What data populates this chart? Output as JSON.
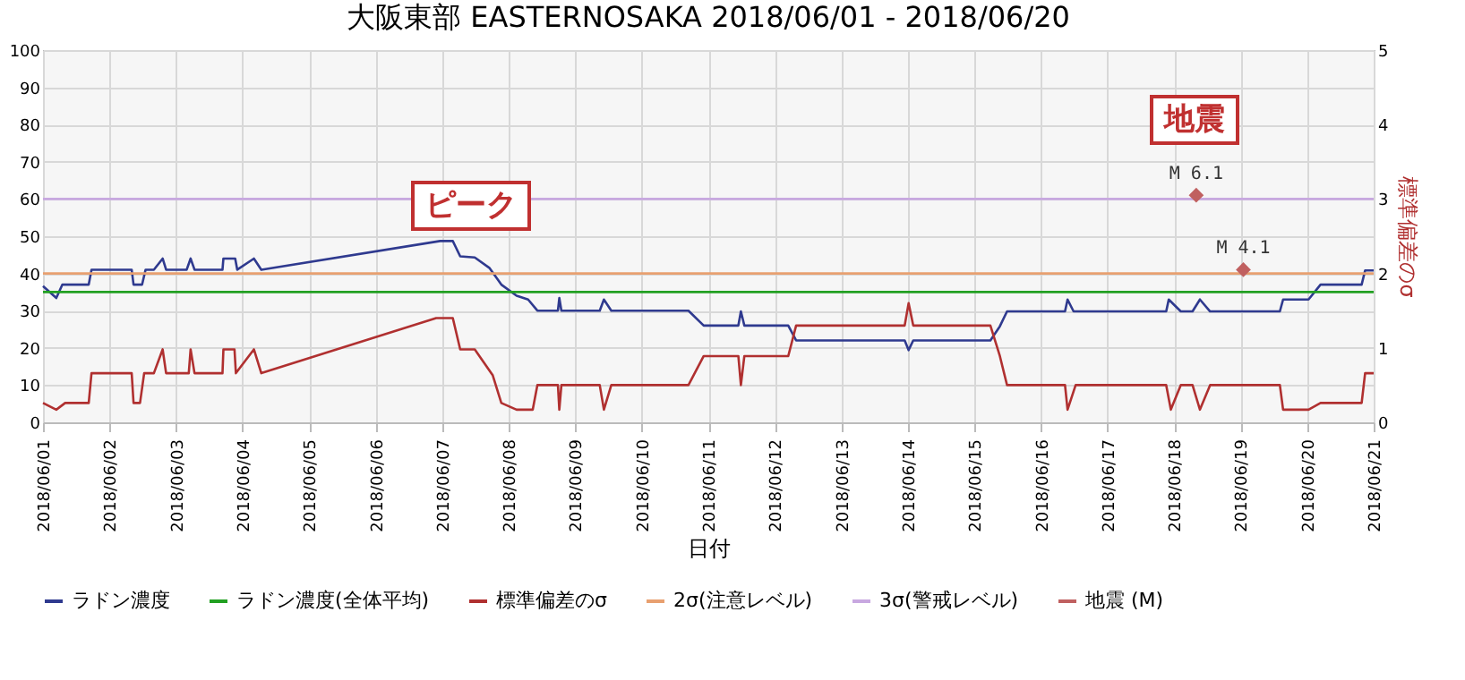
{
  "chart_data": {
    "type": "line",
    "title": "大阪東部 EASTERNOSAKA 2018/06/01 - 2018/06/20",
    "xlabel": "日付",
    "y2label": "標準偏差のσ",
    "annotations": [
      "ピーク",
      "地震"
    ],
    "xlim": [
      "2018-06-01",
      "2018-06-21"
    ],
    "xticks": [
      {
        "value": "2018-06-01",
        "label": "2018/06/01"
      },
      {
        "value": "2018-06-02",
        "label": "2018/06/02"
      },
      {
        "value": "2018-06-03",
        "label": "2018/06/03"
      },
      {
        "value": "2018-06-04",
        "label": "2018/06/04"
      },
      {
        "value": "2018-06-05",
        "label": "2018/06/05"
      },
      {
        "value": "2018-06-06",
        "label": "2018/06/06"
      },
      {
        "value": "2018-06-07",
        "label": "2018/06/07"
      },
      {
        "value": "2018-06-08",
        "label": "2018/06/08"
      },
      {
        "value": "2018-06-09",
        "label": "2018/06/09"
      },
      {
        "value": "2018-06-10",
        "label": "2018/06/10"
      },
      {
        "value": "2018-06-11",
        "label": "2018/06/11"
      },
      {
        "value": "2018-06-12",
        "label": "2018/06/12"
      },
      {
        "value": "2018-06-13",
        "label": "2018/06/13"
      },
      {
        "value": "2018-06-14",
        "label": "2018/06/14"
      },
      {
        "value": "2018-06-15",
        "label": "2018/06/15"
      },
      {
        "value": "2018-06-16",
        "label": "2018/06/16"
      },
      {
        "value": "2018-06-17",
        "label": "2018/06/17"
      },
      {
        "value": "2018-06-18",
        "label": "2018/06/18"
      },
      {
        "value": "2018-06-19",
        "label": "2018/06/19"
      },
      {
        "value": "2018-06-20",
        "label": "2018/06/20"
      },
      {
        "value": "2018-06-21",
        "label": "2018/06/21"
      }
    ],
    "ylim": [
      0,
      100
    ],
    "yticks": [
      0,
      10,
      20,
      30,
      40,
      50,
      60,
      70,
      80,
      90,
      100
    ],
    "y2lim": [
      0,
      5
    ],
    "y2ticks": [
      0,
      1,
      2,
      3,
      4,
      5
    ],
    "grid": true,
    "legend": "bottom",
    "line_style": "solid",
    "series": [
      {
        "name": "ラドン濃度",
        "color": "#2f3a8f",
        "x": [
          "2018-06-01T00:00",
          "2018-06-01T04:48",
          "2018-06-01T07:00",
          "2018-06-01T16:30",
          "2018-06-01T17:30",
          "2018-06-02T08:00",
          "2018-06-02T08:40",
          "2018-06-02T11:45",
          "2018-06-02T13:00",
          "2018-06-02T16:00",
          "2018-06-02T19:10",
          "2018-06-02T20:25",
          "2018-06-03T03:50",
          "2018-06-03T05:15",
          "2018-06-03T06:40",
          "2018-06-03T16:45",
          "2018-06-03T17:05",
          "2018-06-03T21:20",
          "2018-06-03T22:05",
          "2018-06-04T04:05",
          "2018-06-04T06:45",
          "2018-06-06T23:15",
          "2018-06-07T03:50",
          "2018-06-07T06:30",
          "2018-06-07T11:45",
          "2018-06-07T17:00",
          "2018-06-07T21:20",
          "2018-06-08T02:50",
          "2018-06-08T07:00",
          "2018-06-08T10:20",
          "2018-06-08T17:45",
          "2018-06-08T18:15",
          "2018-06-08T19:00",
          "2018-06-09T08:50",
          "2018-06-09T10:20",
          "2018-06-09T13:00",
          "2018-06-10T16:50",
          "2018-06-10T22:20",
          "2018-06-11T10:50",
          "2018-06-11T11:45",
          "2018-06-11T13:00",
          "2018-06-12T04:50",
          "2018-06-12T07:40",
          "2018-06-13T22:50",
          "2018-06-14T00:15",
          "2018-06-14T01:55",
          "2018-06-15T05:45",
          "2018-06-15T09:10",
          "2018-06-15T11:45",
          "2018-06-16T08:40",
          "2018-06-16T09:35",
          "2018-06-16T11:45",
          "2018-06-17T21:10",
          "2018-06-17T22:05",
          "2018-06-18T02:25",
          "2018-06-18T06:40",
          "2018-06-18T09:20",
          "2018-06-18T13:00",
          "2018-06-19T14:10",
          "2018-06-19T15:20",
          "2018-06-20T00:30",
          "2018-06-20T04:50",
          "2018-06-20T19:40",
          "2018-06-20T20:55",
          "2018-06-21T00:00"
        ],
        "values": [
          36.6,
          33.4,
          37,
          37,
          41,
          41,
          37,
          37,
          41,
          41,
          44,
          41,
          41,
          44,
          41,
          41,
          44,
          44,
          41,
          44,
          41,
          48.7,
          48.7,
          44.6,
          44.3,
          41.5,
          37,
          34,
          33,
          30,
          30,
          33.4,
          30,
          30,
          33,
          30,
          30,
          26,
          26,
          29.8,
          26,
          26,
          22,
          22,
          19.4,
          22,
          22,
          25.8,
          29.8,
          29.8,
          33,
          29.8,
          29.8,
          33,
          29.8,
          29.8,
          33,
          29.8,
          29.8,
          33,
          33,
          37,
          37,
          40.8,
          40.8
        ]
      },
      {
        "name": "ラドン濃度(全体平均)",
        "color": "#22a022",
        "x": [
          "2018-06-01",
          "2018-06-21"
        ],
        "values": [
          35,
          35
        ]
      },
      {
        "name": "標準偏差のσ",
        "color": "#b03030",
        "axis": "y2",
        "x": [
          "2018-06-01T00:00",
          "2018-06-01T04:48",
          "2018-06-01T08:00",
          "2018-06-01T16:30",
          "2018-06-01T17:30",
          "2018-06-02T08:00",
          "2018-06-02T08:40",
          "2018-06-02T11:00",
          "2018-06-02T12:30",
          "2018-06-02T16:00",
          "2018-06-02T19:10",
          "2018-06-02T20:25",
          "2018-06-03T04:35",
          "2018-06-03T05:15",
          "2018-06-03T06:40",
          "2018-06-03T16:45",
          "2018-06-03T17:05",
          "2018-06-03T21:05",
          "2018-06-03T21:35",
          "2018-06-04T04:05",
          "2018-06-04T06:45",
          "2018-06-06T21:50",
          "2018-06-07T03:50",
          "2018-06-07T06:30",
          "2018-06-07T11:45",
          "2018-06-07T18:15",
          "2018-06-07T21:20",
          "2018-06-08T02:50",
          "2018-06-08T08:40",
          "2018-06-08T10:20",
          "2018-06-08T17:45",
          "2018-06-08T18:15",
          "2018-06-08T19:00",
          "2018-06-09T08:50",
          "2018-06-09T10:20",
          "2018-06-09T13:00",
          "2018-06-10T16:50",
          "2018-06-10T22:20",
          "2018-06-11T10:50",
          "2018-06-11T11:45",
          "2018-06-11T13:00",
          "2018-06-12T04:50",
          "2018-06-12T07:40",
          "2018-06-13T22:50",
          "2018-06-14T00:15",
          "2018-06-14T01:55",
          "2018-06-15T05:45",
          "2018-06-15T09:10",
          "2018-06-15T11:45",
          "2018-06-16T08:40",
          "2018-06-16T09:35",
          "2018-06-16T12:30",
          "2018-06-17T21:10",
          "2018-06-17T22:50",
          "2018-06-18T02:25",
          "2018-06-18T06:40",
          "2018-06-18T09:20",
          "2018-06-18T13:00",
          "2018-06-19T14:10",
          "2018-06-19T15:20",
          "2018-06-20T00:30",
          "2018-06-20T04:50",
          "2018-06-20T19:40",
          "2018-06-20T20:55",
          "2018-06-21T00:00"
        ],
        "values": [
          0.26,
          0.17,
          0.26,
          0.26,
          0.66,
          0.66,
          0.26,
          0.26,
          0.66,
          0.66,
          0.98,
          0.66,
          0.66,
          0.98,
          0.66,
          0.66,
          0.98,
          0.98,
          0.66,
          0.98,
          0.66,
          1.4,
          1.4,
          0.98,
          0.98,
          0.63,
          0.26,
          0.17,
          0.17,
          0.5,
          0.5,
          0.17,
          0.5,
          0.5,
          0.17,
          0.5,
          0.5,
          0.89,
          0.89,
          0.5,
          0.89,
          0.89,
          1.3,
          1.3,
          1.6,
          1.3,
          1.3,
          0.89,
          0.5,
          0.5,
          0.17,
          0.5,
          0.5,
          0.17,
          0.5,
          0.5,
          0.17,
          0.5,
          0.5,
          0.17,
          0.17,
          0.26,
          0.26,
          0.66,
          0.66
        ]
      },
      {
        "name": "2σ(注意レベル)",
        "color": "#e8a070",
        "axis": "y2",
        "x": [
          "2018-06-01",
          "2018-06-21"
        ],
        "values": [
          2,
          2
        ]
      },
      {
        "name": "3σ(警戒レベル)",
        "color": "#c8a8e0",
        "axis": "y2",
        "x": [
          "2018-06-01",
          "2018-06-21"
        ],
        "values": [
          3,
          3
        ]
      },
      {
        "name": "地震 (M)",
        "type": "scatter",
        "marker": "diamond",
        "color": "#c06060",
        "axis": "y2",
        "x": [
          "2018-06-18T08:00",
          "2018-06-19T01:00"
        ],
        "values": [
          3.05,
          2.05
        ],
        "value_labels": [
          "M 6.1",
          "M 4.1"
        ]
      }
    ]
  }
}
